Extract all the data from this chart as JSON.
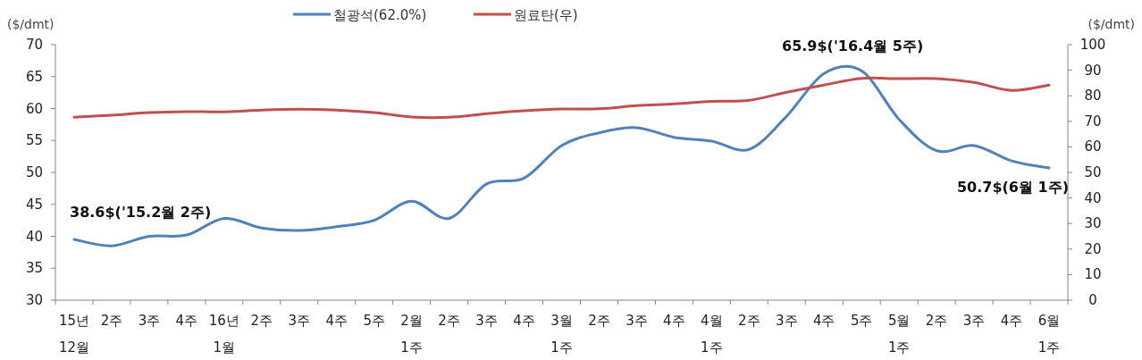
{
  "chart_data": {
    "type": "line",
    "ylabel": "($/dmt)",
    "y2label": "($/dmt)",
    "categories": [
      "15년 12월",
      "2주",
      "3주",
      "4주",
      "16년 1월",
      "2주",
      "3주",
      "4주",
      "5주",
      "2월 1주",
      "2주",
      "3주",
      "4주",
      "3월 1주",
      "2주",
      "3주",
      "4주",
      "4월 1주",
      "2주",
      "3주",
      "4주",
      "5주",
      "5월 1주",
      "2주",
      "3주",
      "4주",
      "6월 1주"
    ],
    "series": [
      {
        "name": "철광석(62.0%)",
        "color": "#4f81bd",
        "values": [
          39.5,
          38.5,
          40.0,
          40.2,
          42.8,
          41.3,
          40.9,
          41.5,
          42.5,
          45.5,
          42.8,
          48.2,
          49.1,
          54.2,
          56.2,
          57.0,
          55.5,
          54.9,
          53.6,
          58.8,
          65.5,
          65.9,
          58.3,
          53.4,
          54.2,
          51.8,
          50.7
        ]
      },
      {
        "name": "원료탄(우)",
        "color": "#c0504d",
        "axis": "y2",
        "values": [
          71.6,
          72.4,
          73.4,
          73.8,
          73.7,
          74.4,
          74.7,
          74.4,
          73.4,
          71.7,
          71.6,
          73.0,
          74.1,
          74.8,
          74.9,
          76.1,
          76.8,
          77.8,
          78.2,
          81.4,
          84.2,
          86.8,
          86.7,
          86.7,
          85.2,
          82.1,
          84.2
        ]
      }
    ],
    "ylim": [
      30,
      70
    ],
    "yticks": [
      30,
      35,
      40,
      45,
      50,
      55,
      60,
      65,
      70
    ],
    "y2lim": [
      0,
      100
    ],
    "y2ticks": [
      0,
      10,
      20,
      30,
      40,
      50,
      60,
      70,
      80,
      90,
      100
    ],
    "annotations": [
      "38.6$('15.2월 2주)",
      "65.9$('16.4월 5주)",
      "50.7$(6월 1주)"
    ],
    "legend": "top",
    "grid": false
  }
}
